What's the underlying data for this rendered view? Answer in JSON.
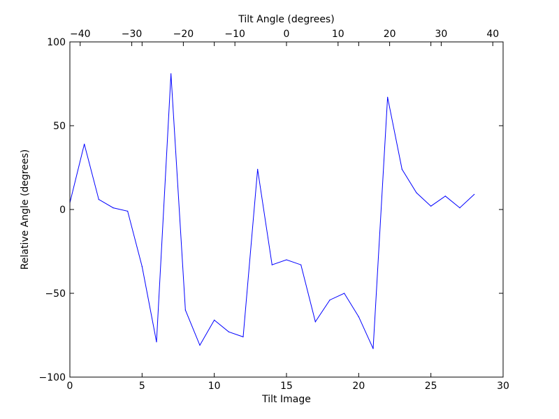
{
  "chart_data": {
    "type": "line",
    "title": "",
    "xlabel": "Tilt Image",
    "ylabel": "Relative Angle (degrees)",
    "top_xlabel": "Tilt Angle (degrees)",
    "xlim": [
      0,
      30
    ],
    "ylim": [
      -100,
      100
    ],
    "top_xlim": [
      -42,
      42
    ],
    "x_ticks": [
      0,
      5,
      10,
      15,
      20,
      25,
      30
    ],
    "y_ticks": [
      -100,
      -50,
      0,
      50,
      100
    ],
    "top_x_ticks": [
      -40,
      -30,
      -20,
      -10,
      0,
      10,
      20,
      30,
      40
    ],
    "x_tick_labels": [
      "0",
      "5",
      "10",
      "15",
      "20",
      "25",
      "30"
    ],
    "y_tick_labels": [
      "−100",
      "−50",
      "0",
      "50",
      "100"
    ],
    "top_x_tick_labels": [
      "−40",
      "−30",
      "−20",
      "−10",
      "0",
      "10",
      "20",
      "30",
      "40"
    ],
    "grid": false,
    "legend": "none",
    "series": [
      {
        "color": "#0000ff",
        "x": [
          0,
          1,
          2,
          3,
          4,
          5,
          6,
          7,
          8,
          9,
          10,
          11,
          12,
          13,
          14,
          15,
          16,
          17,
          18,
          19,
          20,
          21,
          22,
          23,
          24,
          25,
          26,
          27,
          28
        ],
        "y": [
          4,
          39,
          6,
          1,
          -1,
          -34,
          -79,
          81,
          -60,
          -81,
          -66,
          -73,
          -76,
          24,
          -33,
          -30,
          -33,
          -67,
          -54,
          -50,
          -64,
          -83,
          67,
          24,
          10,
          2,
          8,
          1,
          9
        ]
      }
    ]
  }
}
